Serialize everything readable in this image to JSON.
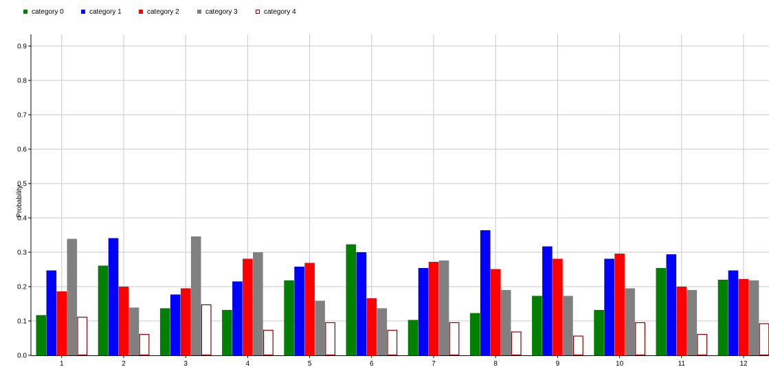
{
  "chart_data": {
    "type": "bar",
    "title": "",
    "xlabel": "",
    "ylabel": "Probability",
    "ylim": [
      0,
      0.93
    ],
    "yticks": [
      0.0,
      0.1,
      0.2,
      0.3,
      0.4,
      0.5,
      0.6,
      0.7,
      0.8,
      0.9
    ],
    "ytick_labels": [
      "0.0",
      "0.1",
      "0.2",
      "0.3",
      "0.4",
      "0.5",
      "0.6",
      "0.7",
      "0.8",
      "0.9"
    ],
    "grid": true,
    "legend_position": "top-left",
    "categories": [
      "1",
      "2",
      "3",
      "4",
      "5",
      "6",
      "7",
      "8",
      "9",
      "10",
      "11",
      "12"
    ],
    "series": [
      {
        "name": "category 0",
        "color": "#008000",
        "filled": true,
        "values": [
          0.117,
          0.261,
          0.137,
          0.132,
          0.218,
          0.323,
          0.103,
          0.123,
          0.173,
          0.132,
          0.254,
          0.22
        ]
      },
      {
        "name": "category 1",
        "color": "#0000ff",
        "filled": true,
        "values": [
          0.247,
          0.341,
          0.177,
          0.215,
          0.258,
          0.3,
          0.254,
          0.364,
          0.317,
          0.281,
          0.294,
          0.247
        ]
      },
      {
        "name": "category 2",
        "color": "#ff0000",
        "filled": true,
        "values": [
          0.186,
          0.2,
          0.195,
          0.281,
          0.269,
          0.166,
          0.272,
          0.251,
          0.281,
          0.296,
          0.2,
          0.222
        ]
      },
      {
        "name": "category 3",
        "color": "#808080",
        "filled": true,
        "values": [
          0.339,
          0.139,
          0.346,
          0.3,
          0.159,
          0.137,
          0.276,
          0.19,
          0.173,
          0.195,
          0.19,
          0.218
        ]
      },
      {
        "name": "category 4",
        "color": "#8b0000",
        "filled": false,
        "values": [
          0.112,
          0.062,
          0.148,
          0.074,
          0.096,
          0.074,
          0.096,
          0.069,
          0.057,
          0.096,
          0.062,
          0.093
        ]
      }
    ]
  }
}
